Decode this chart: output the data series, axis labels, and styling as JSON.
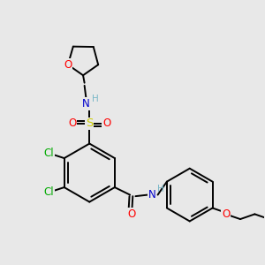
{
  "background_color": "#e8e8e8",
  "colors": {
    "C": "#000000",
    "N": "#0000cc",
    "O": "#ff0000",
    "S": "#cccc00",
    "Cl": "#00aa00",
    "H": "#7ab8c8",
    "bond": "#000000"
  },
  "bond_lw": 1.4,
  "figsize": [
    3.0,
    3.0
  ],
  "dpi": 100
}
